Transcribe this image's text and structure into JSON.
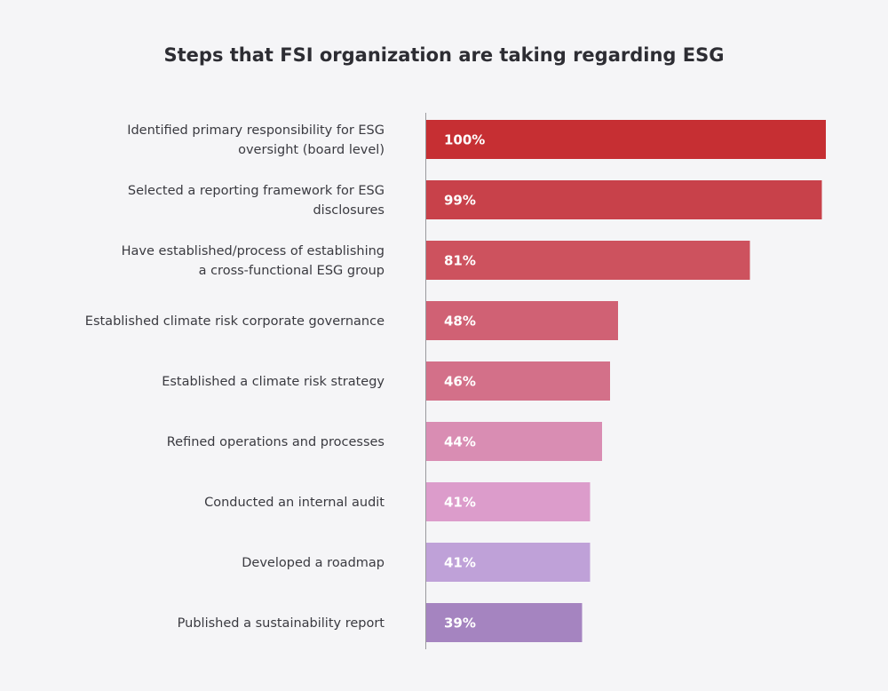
{
  "chart_data": {
    "type": "bar",
    "orientation": "horizontal",
    "title": "Steps that FSI organization are taking regarding ESG",
    "categories": [
      [
        "Identified primary responsibility for ESG",
        "oversight (board level)"
      ],
      [
        "Selected a reporting framework for ESG",
        "disclosures"
      ],
      [
        "Have established/process of establishing",
        "a cross-functional ESG group"
      ],
      [
        "Established climate risk corporate governance"
      ],
      [
        "Established a climate risk strategy"
      ],
      [
        "Refined operations and processes"
      ],
      [
        "Conducted an internal audit"
      ],
      [
        "Developed a roadmap"
      ],
      [
        "Published a sustainability report"
      ]
    ],
    "values": [
      100,
      99,
      81,
      48,
      46,
      44,
      41,
      41,
      39
    ],
    "value_labels": [
      "100%",
      "99%",
      "81%",
      "48%",
      "46%",
      "44%",
      "41%",
      "41%",
      "39%"
    ],
    "colors": [
      "#c62f33",
      "#c8414a",
      "#cd525e",
      "#d06174",
      "#d37089",
      "#d98db3",
      "#dc9ccb",
      "#bfa1d8",
      "#a584c0"
    ],
    "xlim": [
      0,
      100
    ],
    "grid": false,
    "legend": "none"
  }
}
